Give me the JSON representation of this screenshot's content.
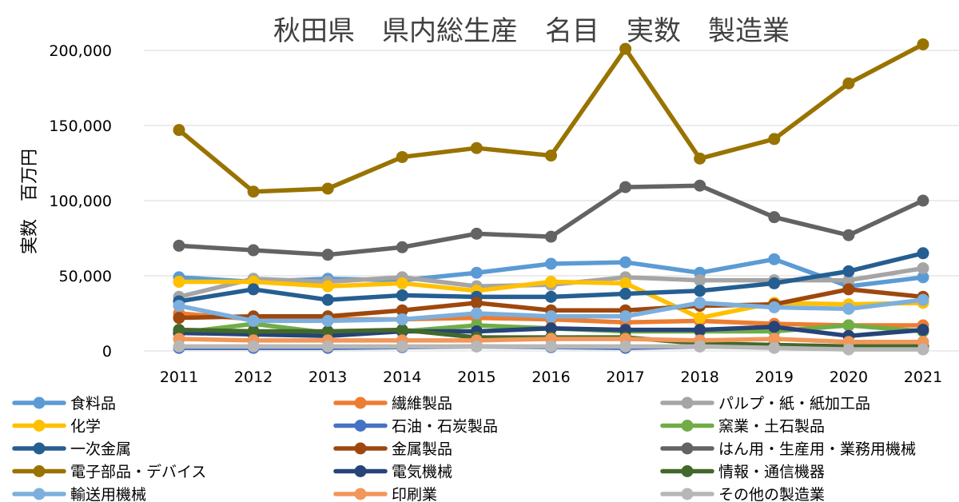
{
  "chart_data": {
    "type": "line",
    "title": "秋田県　県内総生産　名目　実数　製造業",
    "xlabel": "",
    "ylabel": "実数　百万円",
    "ylim": [
      0,
      200000
    ],
    "yticks": [
      0,
      50000,
      100000,
      150000,
      200000
    ],
    "ytick_labels": [
      "0",
      "50,000",
      "100,000",
      "150,000",
      "200,000"
    ],
    "grid": true,
    "legend_position": "bottom",
    "categories": [
      "2011",
      "2012",
      "2013",
      "2014",
      "2015",
      "2016",
      "2017",
      "2018",
      "2019",
      "2020",
      "2021"
    ],
    "series": [
      {
        "name": "食料品",
        "color": "#5b9bd5",
        "values": [
          49000,
          46000,
          48000,
          47000,
          52000,
          58000,
          59000,
          52000,
          61000,
          43000,
          49000
        ]
      },
      {
        "name": "繊維製品",
        "color": "#ed7d31",
        "values": [
          25000,
          21000,
          21000,
          21000,
          22000,
          21000,
          19000,
          20000,
          18000,
          17000,
          17000
        ]
      },
      {
        "name": "パルプ・紙・紙加工品",
        "color": "#a5a5a5",
        "values": [
          36000,
          48000,
          46000,
          49000,
          43000,
          44000,
          49000,
          47000,
          47000,
          47000,
          55000
        ]
      },
      {
        "name": "化学",
        "color": "#ffc000",
        "values": [
          46000,
          46000,
          43000,
          45000,
          40000,
          46000,
          45000,
          22000,
          32000,
          31000,
          32000
        ]
      },
      {
        "name": "石油・石炭製品",
        "color": "#4472c4",
        "values": [
          2000,
          2000,
          2000,
          2500,
          3000,
          2500,
          2000,
          3000,
          2500,
          2000,
          2000
        ]
      },
      {
        "name": "窯業・土石製品",
        "color": "#70ad47",
        "values": [
          12000,
          18000,
          12000,
          13000,
          17000,
          15000,
          13000,
          13000,
          13000,
          17000,
          13000
        ]
      },
      {
        "name": "一次金属",
        "color": "#255e91",
        "values": [
          33000,
          41000,
          34000,
          37000,
          36000,
          36000,
          38000,
          40000,
          45000,
          53000,
          65000
        ]
      },
      {
        "name": "金属製品",
        "color": "#9e480e",
        "values": [
          22000,
          23000,
          23000,
          27000,
          32000,
          27000,
          27000,
          30000,
          31000,
          41000,
          36000
        ]
      },
      {
        "name": "はん用・生産用・業務用機械",
        "color": "#636363",
        "values": [
          70000,
          67000,
          64000,
          69000,
          78000,
          76000,
          109000,
          110000,
          89000,
          77000,
          100000
        ]
      },
      {
        "name": "電子部品・デバイス",
        "color": "#997300",
        "values": [
          147000,
          106000,
          108000,
          129000,
          135000,
          130000,
          201000,
          128000,
          141000,
          178000,
          204000
        ]
      },
      {
        "name": "電気機械",
        "color": "#264478",
        "values": [
          12000,
          11000,
          10000,
          13000,
          13000,
          15000,
          14000,
          14000,
          16000,
          10000,
          14000
        ]
      },
      {
        "name": "情報・通信機器",
        "color": "#43682b",
        "values": [
          14000,
          13000,
          13000,
          14000,
          9000,
          9000,
          9000,
          5000,
          4000,
          3000,
          3000
        ]
      },
      {
        "name": "輸送用機械",
        "color": "#7cafdd",
        "values": [
          30000,
          20000,
          20000,
          21000,
          25000,
          23000,
          23000,
          32000,
          29000,
          28000,
          34000
        ]
      },
      {
        "name": "印刷業",
        "color": "#f1975a",
        "values": [
          8000,
          7000,
          7000,
          7000,
          7000,
          8000,
          8000,
          7000,
          8000,
          6000,
          6000
        ]
      },
      {
        "name": "その他の製造業",
        "color": "#b7b7b7",
        "values": [
          3000,
          3000,
          3000,
          3000,
          3000,
          3000,
          3000,
          3000,
          2000,
          1000,
          1000
        ]
      }
    ]
  }
}
